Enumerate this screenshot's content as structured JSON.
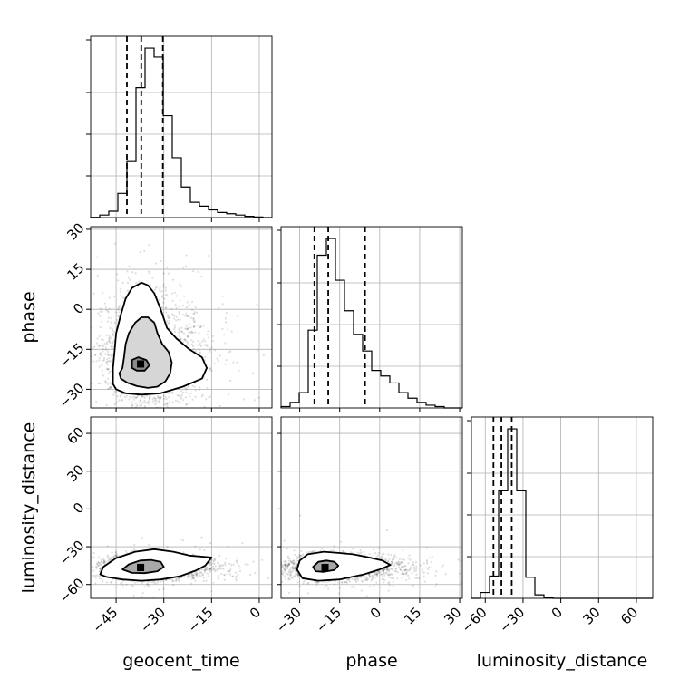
{
  "chart_data": {
    "type": "corner",
    "parameters": [
      "geocent_time",
      "phase",
      "luminosity_distance"
    ],
    "axis_labels": {
      "x": [
        "geocent_time",
        "phase",
        "luminosity_distance"
      ],
      "y": [
        "",
        "phase",
        "luminosity_distance"
      ]
    },
    "ranges": {
      "geocent_time": [
        -53,
        4
      ],
      "phase": [
        -37,
        31
      ],
      "luminosity_distance": [
        -71,
        73
      ]
    },
    "ticks": {
      "geocent_time": [
        -45,
        -30,
        -15,
        0
      ],
      "phase": [
        -30,
        -15,
        0,
        15,
        30
      ],
      "luminosity_distance": [
        -60,
        -30,
        0,
        30,
        60
      ]
    },
    "tick_labels": {
      "geocent_time": [
        "−45",
        "−30",
        "−15",
        "0"
      ],
      "phase": [
        "−30",
        "−15",
        "0",
        "15",
        "30"
      ],
      "luminosity_distance": [
        "−60",
        "−30",
        "0",
        "30",
        "60"
      ]
    },
    "histograms": {
      "geocent_time": {
        "bin_edges": [
          -53,
          -50.15,
          -47.3,
          -44.45,
          -41.6,
          -38.75,
          -35.9,
          -33.05,
          -30.2,
          -27.35,
          -24.5,
          -21.65,
          -18.8,
          -15.95,
          -13.1,
          -10.25,
          -7.4,
          -4.55,
          -1.7,
          1.15,
          4
        ],
        "counts": [
          0.2,
          2,
          5,
          19,
          44,
          102,
          133,
          126,
          80,
          47,
          24,
          12,
          9,
          6,
          4,
          3,
          2,
          1,
          0.5,
          0
        ]
      },
      "phase": {
        "bin_edges": [
          -37,
          -33.6,
          -30.2,
          -26.8,
          -23.4,
          -20,
          -16.6,
          -13.2,
          -9.8,
          -6.4,
          -3,
          0.4,
          3.8,
          7.2,
          10.6,
          14,
          17.4,
          20.8,
          24.2,
          27.6,
          31
        ],
        "counts": [
          1,
          4,
          11,
          56,
          110,
          122,
          92,
          70,
          53,
          41,
          27,
          23,
          18,
          11,
          7,
          4,
          2,
          1,
          0,
          0
        ]
      },
      "luminosity_distance": {
        "bin_edges": [
          -71,
          -63.8,
          -56.6,
          -49.4,
          -42.2,
          -35,
          -27.8,
          -20.6,
          -13.4,
          -6.2,
          1,
          8.2,
          15.4,
          22.6,
          29.8,
          37,
          44.2,
          51.4,
          58.6,
          65.8,
          73
        ],
        "counts": [
          0,
          5,
          19,
          92,
          145,
          92,
          18,
          3,
          0.5,
          0,
          0,
          0,
          0,
          0,
          0,
          0,
          0,
          0,
          0,
          0
        ]
      }
    },
    "quantile_lines": {
      "geocent_time": [
        -41.6,
        -37.1,
        -30.3
      ],
      "phase": [
        -24.5,
        -19.3,
        -5.5
      ],
      "luminosity_distance": [
        -53.5,
        -47.2,
        -39.0
      ]
    },
    "joint_panels": [
      {
        "x": "geocent_time",
        "y": "phase",
        "peak": [
          -37.3,
          -20.5
        ],
        "contours": [
          [
            [
              -44,
              -24
            ],
            [
              -43,
              -22
            ],
            [
              -42.5,
              -18
            ],
            [
              -42,
              -13
            ],
            [
              -41,
              -9
            ],
            [
              -39,
              -5
            ],
            [
              -37,
              -3
            ],
            [
              -35,
              -3
            ],
            [
              -33,
              -5
            ],
            [
              -32,
              -9
            ],
            [
              -30.5,
              -13
            ],
            [
              -28.5,
              -16
            ],
            [
              -27.5,
              -20
            ],
            [
              -28,
              -24
            ],
            [
              -29.5,
              -27
            ],
            [
              -32,
              -29
            ],
            [
              -35,
              -29.5
            ],
            [
              -38.5,
              -28.8
            ],
            [
              -41.5,
              -27.5
            ],
            [
              -43.5,
              -26
            ]
          ],
          [
            [
              -46,
              -28
            ],
            [
              -46,
              -22
            ],
            [
              -45.5,
              -16
            ],
            [
              -45,
              -9
            ],
            [
              -43.5,
              -2
            ],
            [
              -42,
              4
            ],
            [
              -40,
              8
            ],
            [
              -37,
              10
            ],
            [
              -35,
              9
            ],
            [
              -33,
              6
            ],
            [
              -31,
              0
            ],
            [
              -29,
              -7
            ],
            [
              -26,
              -11
            ],
            [
              -22,
              -15
            ],
            [
              -18,
              -18
            ],
            [
              -16.5,
              -22
            ],
            [
              -18,
              -26
            ],
            [
              -24,
              -29
            ],
            [
              -31,
              -31.5
            ],
            [
              -37,
              -32
            ],
            [
              -42,
              -31.5
            ],
            [
              -45,
              -30
            ]
          ],
          [
            [
              -40,
              -22
            ],
            [
              -40,
              -19
            ],
            [
              -38,
              -18
            ],
            [
              -35.5,
              -19
            ],
            [
              -34.5,
              -21
            ],
            [
              -36,
              -23
            ],
            [
              -38.5,
              -23
            ]
          ]
        ],
        "scatter_density": {
          "count": 2600,
          "spread": [
            6,
            9
          ]
        }
      },
      {
        "x": "geocent_time",
        "y": "luminosity_distance",
        "peak": [
          -37.3,
          -46.5
        ],
        "contours": [
          [
            [
              -43,
              -48
            ],
            [
              -41,
              -44
            ],
            [
              -37.5,
              -41
            ],
            [
              -34,
              -40.5
            ],
            [
              -31,
              -42
            ],
            [
              -30,
              -46
            ],
            [
              -32,
              -49.5
            ],
            [
              -36,
              -51
            ],
            [
              -40,
              -50.8
            ]
          ],
          [
            [
              -50,
              -52
            ],
            [
              -49,
              -46
            ],
            [
              -45,
              -39
            ],
            [
              -39,
              -34
            ],
            [
              -33,
              -32
            ],
            [
              -27,
              -34
            ],
            [
              -22,
              -37
            ],
            [
              -15,
              -38.5
            ],
            [
              -17,
              -45
            ],
            [
              -20,
              -49
            ],
            [
              -25,
              -53.5
            ],
            [
              -31,
              -56
            ],
            [
              -37,
              -57
            ],
            [
              -43,
              -56
            ],
            [
              -48,
              -54
            ]
          ]
        ],
        "scatter_density": {
          "count": 2200,
          "spread": [
            7,
            5
          ]
        }
      },
      {
        "x": "phase",
        "y": "luminosity_distance",
        "peak": [
          -20.5,
          -46.5
        ],
        "contours": [
          [
            [
              -25,
              -46
            ],
            [
              -23,
              -42
            ],
            [
              -20,
              -41
            ],
            [
              -17,
              -42
            ],
            [
              -15.5,
              -45
            ],
            [
              -17,
              -48.5
            ],
            [
              -21,
              -50
            ],
            [
              -24,
              -49.5
            ]
          ],
          [
            [
              -31,
              -48
            ],
            [
              -30,
              -41
            ],
            [
              -27,
              -36
            ],
            [
              -21,
              -34
            ],
            [
              -15,
              -35
            ],
            [
              -10,
              -36
            ],
            [
              -5,
              -38
            ],
            [
              1,
              -41
            ],
            [
              4,
              -44.5
            ],
            [
              0,
              -48
            ],
            [
              -6,
              -52
            ],
            [
              -15,
              -56
            ],
            [
              -23,
              -57
            ],
            [
              -29,
              -55
            ]
          ]
        ],
        "scatter_density": {
          "count": 2200,
          "spread": [
            9,
            5
          ]
        }
      }
    ],
    "grid": true
  }
}
